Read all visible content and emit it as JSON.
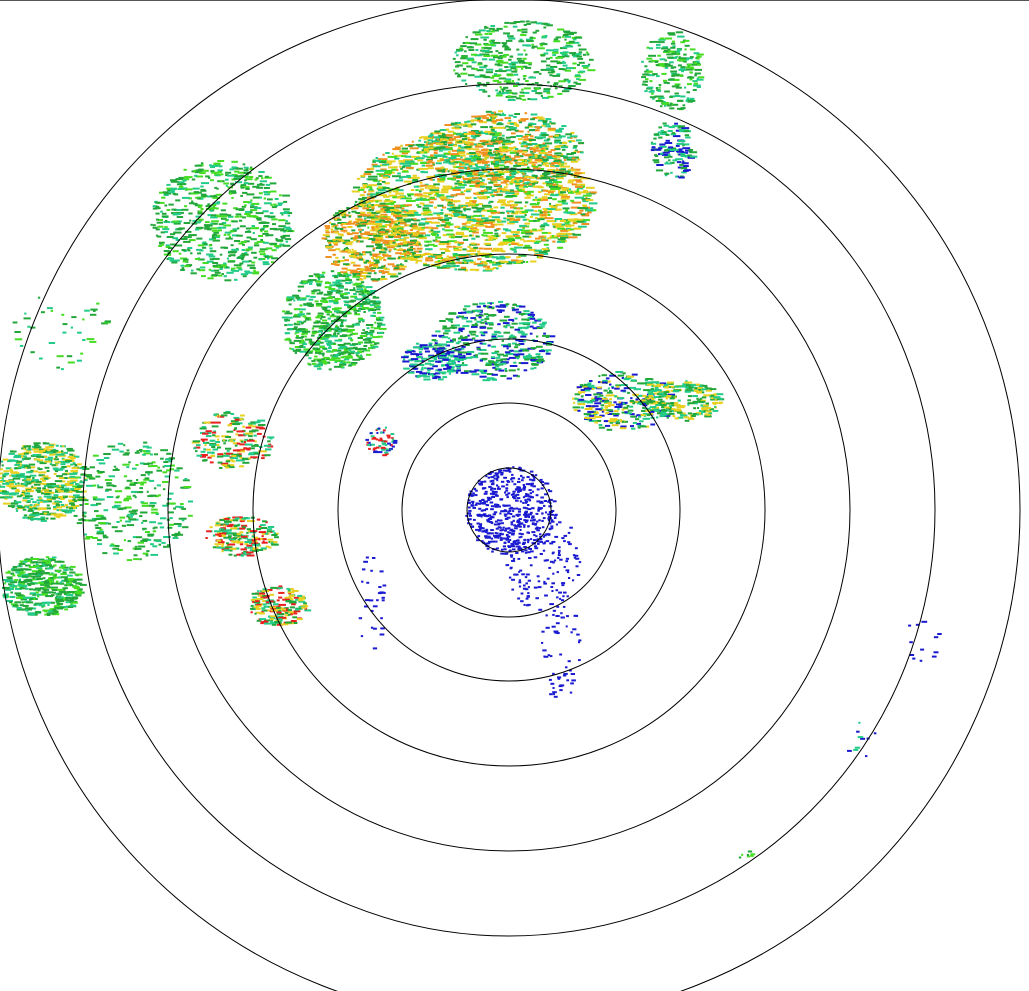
{
  "radar": {
    "palette": {
      "weak": "#1a1ad0",
      "light": "#22cc88",
      "moderate": "#22a83a",
      "bright_green": "#44dd22",
      "yellow": "#e8d020",
      "orange": "#f09020",
      "red": "#e82020"
    },
    "range_ring_color": "#000000"
  }
}
